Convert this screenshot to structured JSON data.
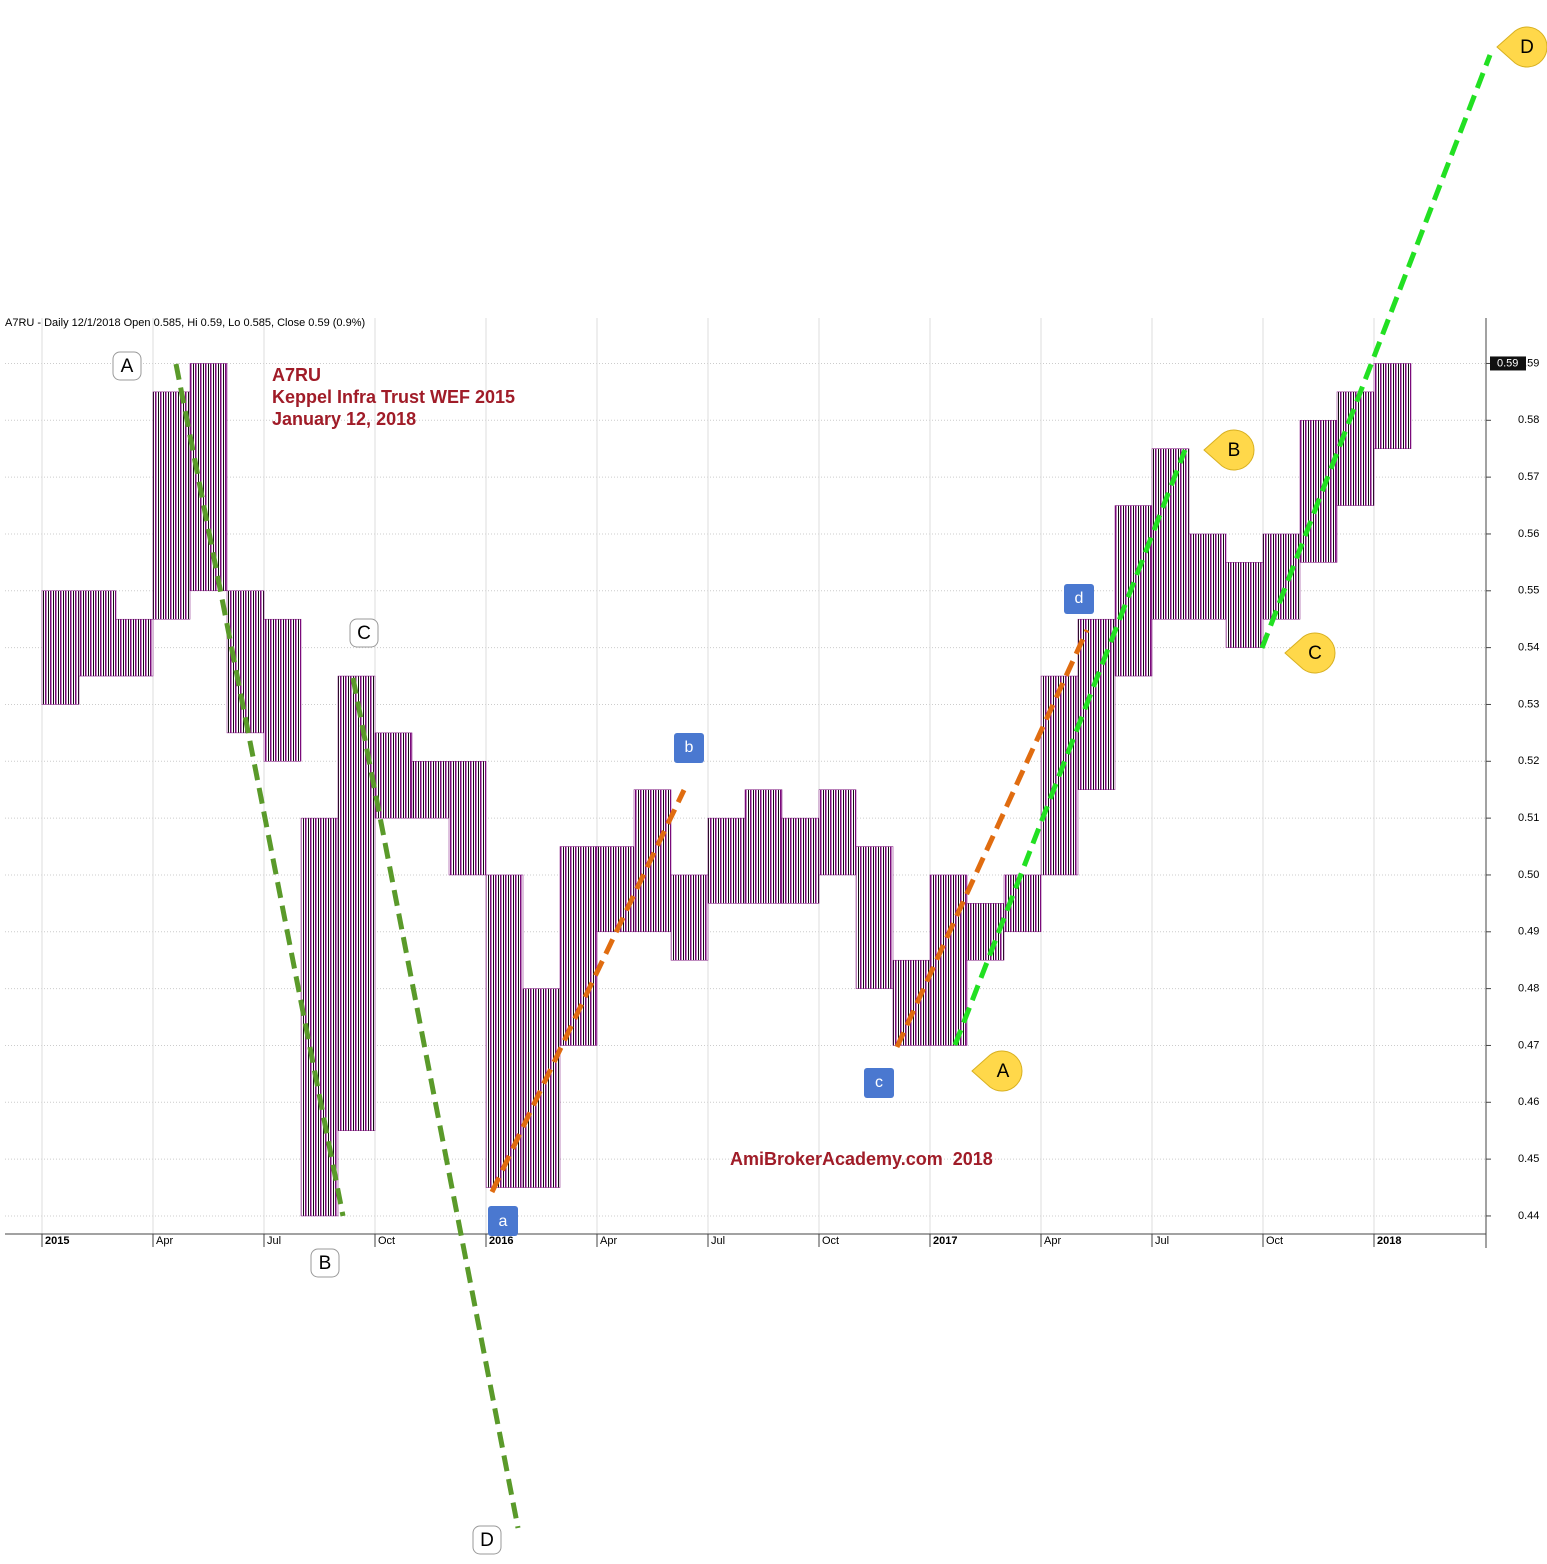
{
  "chart_data": {
    "type": "range",
    "header": "A7RU - Daily 12/1/2018 Open 0.585, Hi 0.59, Lo 0.585, Close 0.59 (0.9%)",
    "title": "A7RU",
    "subtitle": "Keppel Infra Trust WEF 2015",
    "date": "January 12, 2018",
    "watermark": "AmiBrokerAcademy.com  2018",
    "annotations": [
      "A",
      "B",
      "C",
      "D",
      "a",
      "b",
      "c",
      "d",
      "A",
      "B",
      "C",
      "D"
    ],
    "last_price": 0.59,
    "x": [
      "2015-01",
      "2015-02",
      "2015-03",
      "2015-04",
      "2015-05",
      "2015-06",
      "2015-07",
      "2015-08",
      "2015-09",
      "2015-10",
      "2015-11",
      "2015-12",
      "2016-01",
      "2016-02",
      "2016-03",
      "2016-04",
      "2016-05",
      "2016-06",
      "2016-07",
      "2016-08",
      "2016-09",
      "2016-10",
      "2016-11",
      "2016-12",
      "2017-01",
      "2017-02",
      "2017-03",
      "2017-04",
      "2017-05",
      "2017-06",
      "2017-07",
      "2017-08",
      "2017-09",
      "2017-10",
      "2017-11",
      "2017-12",
      "2018-01"
    ],
    "low": [
      0.53,
      0.535,
      0.535,
      0.545,
      0.55,
      0.525,
      0.52,
      0.44,
      0.455,
      0.51,
      0.51,
      0.5,
      0.445,
      0.445,
      0.47,
      0.49,
      0.49,
      0.485,
      0.495,
      0.495,
      0.495,
      0.5,
      0.48,
      0.47,
      0.47,
      0.485,
      0.49,
      0.5,
      0.515,
      0.535,
      0.545,
      0.545,
      0.54,
      0.545,
      0.555,
      0.565,
      0.575
    ],
    "high": [
      0.55,
      0.55,
      0.545,
      0.585,
      0.59,
      0.55,
      0.545,
      0.51,
      0.535,
      0.525,
      0.52,
      0.52,
      0.5,
      0.48,
      0.505,
      0.505,
      0.515,
      0.5,
      0.51,
      0.515,
      0.51,
      0.515,
      0.505,
      0.485,
      0.5,
      0.495,
      0.5,
      0.535,
      0.545,
      0.565,
      0.575,
      0.56,
      0.555,
      0.56,
      0.58,
      0.585,
      0.59
    ],
    "color": "#7a0a7a",
    "xlim": [
      "2015-01",
      "2018-04"
    ],
    "xticks": [
      {
        "value": "2015-01",
        "label": "2015"
      },
      {
        "value": "2015-04",
        "label": "Apr"
      },
      {
        "value": "2015-07",
        "label": "Jul"
      },
      {
        "value": "2015-10",
        "label": "Oct"
      },
      {
        "value": "2016-01",
        "label": "2016"
      },
      {
        "value": "2016-04",
        "label": "Apr"
      },
      {
        "value": "2016-07",
        "label": "Jul"
      },
      {
        "value": "2016-10",
        "label": "Oct"
      },
      {
        "value": "2017-01",
        "label": "2017"
      },
      {
        "value": "2017-04",
        "label": "Apr"
      },
      {
        "value": "2017-07",
        "label": "Jul"
      },
      {
        "value": "2017-10",
        "label": "Oct"
      },
      {
        "value": "2018-01",
        "label": "2018"
      }
    ],
    "ylim": [
      0.437,
      0.598
    ],
    "yticks": [
      0.44,
      0.45,
      0.46,
      0.47,
      0.48,
      0.49,
      {
        "value": 0.5,
        "label": "0.50"
      },
      0.51,
      0.52,
      0.53,
      0.54,
      0.55,
      0.56,
      0.57,
      0.58,
      0.59
    ],
    "grid": true
  }
}
